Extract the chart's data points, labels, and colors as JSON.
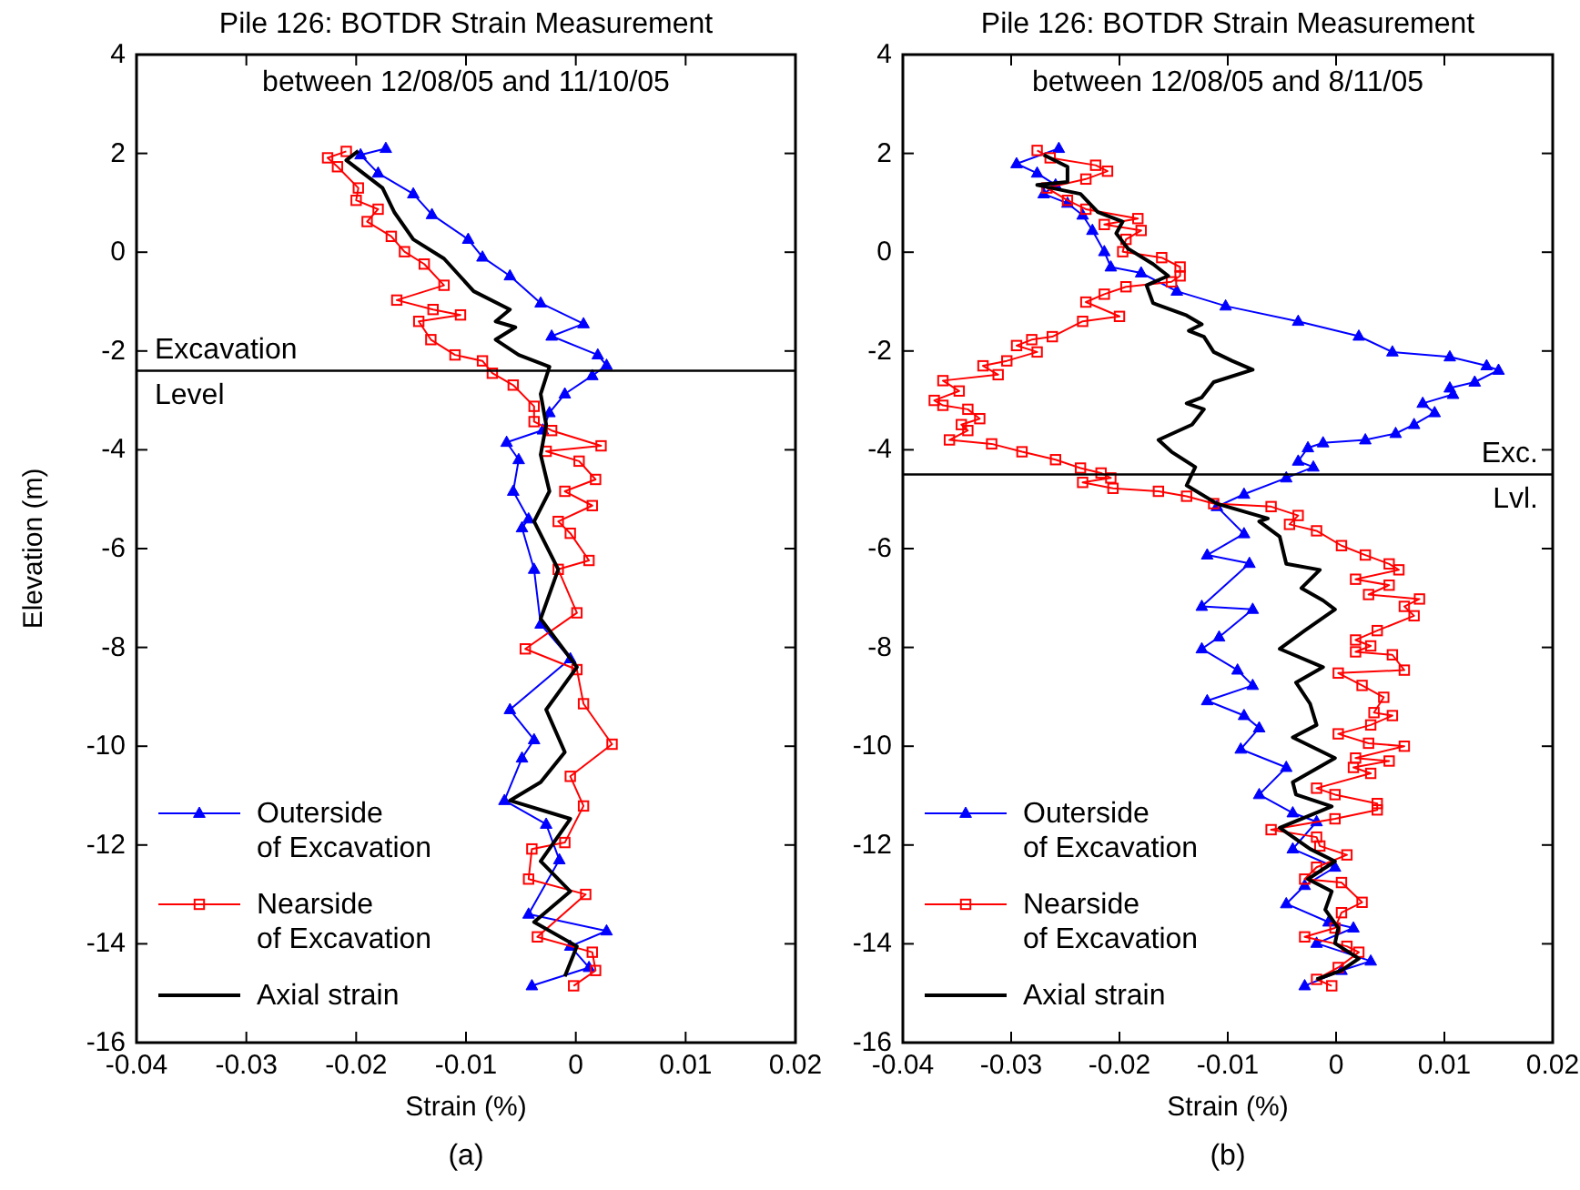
{
  "chart_data": [
    {
      "type": "line",
      "title": "Pile 126: BOTDR Strain Measurement",
      "subtitle": "between 12/08/05 and 11/10/05",
      "xlabel": "Strain (%)",
      "ylabel": "Elevation (m)",
      "annotations": [
        "(a)"
      ],
      "xlim": [
        -0.04,
        0.02
      ],
      "xticks": [
        -0.04,
        -0.03,
        -0.02,
        -0.01,
        0,
        0.01,
        0.02
      ],
      "ylim": [
        -16,
        4
      ],
      "yticks": [
        -16,
        -14,
        -12,
        -10,
        -8,
        -6,
        -4,
        -2,
        0,
        2,
        4
      ],
      "legend": "bottom left",
      "ref_lines": [
        {
          "axis": "y",
          "value": -2.4,
          "label": "Excavation Level",
          "color": "#000000"
        }
      ],
      "series": [
        {
          "name": "Outerside of Excavation",
          "color": "#0000ff",
          "marker": "triangle",
          "x": [
            -0.0173,
            -0.0196,
            -0.018,
            -0.0148,
            -0.0131,
            -0.0098,
            -0.0085,
            -0.006,
            -0.0032,
            0.0007,
            -0.0022,
            0.002,
            0.0028,
            0.0015,
            -0.001,
            -0.0024,
            -0.003,
            -0.0063,
            -0.0052,
            -0.0057,
            -0.0043,
            -0.0049,
            -0.0038,
            -0.0032,
            -0.0005,
            -0.006,
            -0.0038,
            -0.0049,
            -0.0065,
            -0.0027,
            -0.0015,
            -0.0043,
            0.0028,
            -0.0005,
            0.0012,
            -0.004
          ],
          "values": [
            2.1,
            1.97,
            1.6,
            1.18,
            0.76,
            0.26,
            -0.1,
            -0.48,
            -1.03,
            -1.45,
            -1.7,
            -2.08,
            -2.29,
            -2.5,
            -2.87,
            -3.25,
            -3.6,
            -3.85,
            -4.2,
            -4.84,
            -5.4,
            -5.58,
            -6.42,
            -7.53,
            -8.23,
            -9.26,
            -9.87,
            -10.24,
            -11.1,
            -11.58,
            -12.3,
            -13.4,
            -13.74,
            -14.05,
            -14.48,
            -14.85
          ]
        },
        {
          "name": "Nearside of Excavation",
          "color": "#ff0000",
          "marker": "square",
          "x": [
            -0.0209,
            -0.0226,
            -0.0217,
            -0.0198,
            -0.02,
            -0.018,
            -0.019,
            -0.0168,
            -0.0156,
            -0.0138,
            -0.012,
            -0.0163,
            -0.013,
            -0.0105,
            -0.0143,
            -0.0132,
            -0.011,
            -0.0085,
            -0.0076,
            -0.0057,
            -0.0038,
            -0.0038,
            -0.0022,
            0.0023,
            -0.0027,
            0.0003,
            0.0018,
            -0.001,
            0.0015,
            -0.0016,
            -0.0005,
            0.0012,
            -0.0016,
            0.0001,
            -0.0046,
            0.0001,
            0.0007,
            0.0033,
            -0.0005,
            0.0007,
            -0.001,
            -0.004,
            -0.0043,
            0.0009,
            -0.0035,
            0.0015,
            0.0018,
            -0.0002
          ],
          "values": [
            2.04,
            1.91,
            1.73,
            1.3,
            1.05,
            0.87,
            0.62,
            0.32,
            0.01,
            -0.24,
            -0.67,
            -0.97,
            -1.16,
            -1.27,
            -1.4,
            -1.77,
            -2.08,
            -2.2,
            -2.45,
            -2.69,
            -3.12,
            -3.43,
            -3.61,
            -3.92,
            -4.03,
            -4.23,
            -4.6,
            -4.84,
            -5.13,
            -5.45,
            -5.69,
            -6.24,
            -6.42,
            -7.3,
            -8.03,
            -8.45,
            -9.14,
            -9.96,
            -10.61,
            -11.21,
            -11.95,
            -12.08,
            -12.69,
            -13.0,
            -13.86,
            -14.17,
            -14.54,
            -14.85
          ]
        },
        {
          "name": "Axial strain",
          "color": "#000000",
          "marker": "none",
          "x": [
            -0.0198,
            -0.0209,
            -0.0176,
            -0.0165,
            -0.0148,
            -0.012,
            -0.0093,
            -0.006,
            -0.0073,
            -0.0055,
            -0.0073,
            -0.0052,
            -0.0024,
            -0.0032,
            -0.0027,
            -0.0032,
            -0.0024,
            -0.0038,
            -0.0016,
            -0.0032,
            0.0001,
            -0.0027,
            -0.001,
            -0.0032,
            -0.006,
            -0.0005,
            -0.0032,
            -0.0005,
            -0.0038,
            0.0001,
            -0.001
          ],
          "values": [
            2.05,
            1.86,
            1.3,
            0.8,
            0.26,
            -0.13,
            -0.79,
            -1.16,
            -1.4,
            -1.52,
            -1.77,
            -2.08,
            -2.32,
            -2.87,
            -3.49,
            -4.1,
            -4.84,
            -5.45,
            -6.42,
            -7.42,
            -8.4,
            -9.26,
            -10.12,
            -10.73,
            -11.1,
            -11.47,
            -12.33,
            -12.94,
            -13.56,
            -14.05,
            -14.66
          ]
        }
      ]
    },
    {
      "type": "line",
      "title": "Pile 126: BOTDR Strain Measurement",
      "subtitle": "between 12/08/05 and 8/11/05",
      "xlabel": "Strain (%)",
      "annotations": [
        "(b)"
      ],
      "xlim": [
        -0.04,
        0.02
      ],
      "xticks": [
        -0.04,
        -0.03,
        -0.02,
        -0.01,
        0,
        0.01,
        0.02
      ],
      "ylim": [
        -16,
        4
      ],
      "yticks": [
        -16,
        -14,
        -12,
        -10,
        -8,
        -6,
        -4,
        -2,
        0,
        2,
        4
      ],
      "legend": "bottom left",
      "ref_lines": [
        {
          "axis": "y",
          "value": -4.5,
          "label": "Exc. Lvl.",
          "color": "#000000"
        }
      ],
      "series": [
        {
          "name": "Outerside of Excavation",
          "color": "#0000ff",
          "marker": "triangle",
          "x": [
            -0.0256,
            -0.0295,
            -0.0276,
            -0.0259,
            -0.027,
            -0.0248,
            -0.0234,
            -0.0225,
            -0.0214,
            -0.0208,
            -0.018,
            -0.0147,
            -0.0102,
            -0.0035,
            0.0021,
            0.0052,
            0.0105,
            0.0139,
            0.015,
            0.0128,
            0.0105,
            0.0108,
            0.008,
            0.0091,
            0.0072,
            0.0055,
            0.0027,
            -0.0012,
            -0.0026,
            -0.0035,
            -0.0021,
            -0.0046,
            -0.0085,
            -0.011,
            -0.0085,
            -0.0119,
            -0.008,
            -0.0124,
            -0.0077,
            -0.0108,
            -0.0124,
            -0.0091,
            -0.0077,
            -0.0119,
            -0.0085,
            -0.0071,
            -0.0088,
            -0.0046,
            -0.0071,
            -0.004,
            -0.0018,
            -0.004,
            -0.0001,
            -0.0029,
            -0.0046,
            -0.0007,
            0.0016,
            -0.0018,
            0.0032,
            0.0005,
            -0.0029
          ],
          "values": [
            2.1,
            1.79,
            1.6,
            1.36,
            1.18,
            0.99,
            0.75,
            0.44,
            0.01,
            -0.3,
            -0.42,
            -0.79,
            -1.09,
            -1.4,
            -1.7,
            -2.02,
            -2.12,
            -2.3,
            -2.39,
            -2.63,
            -2.75,
            -2.88,
            -3.06,
            -3.25,
            -3.49,
            -3.67,
            -3.8,
            -3.86,
            -3.96,
            -4.23,
            -4.35,
            -4.57,
            -4.9,
            -5.15,
            -5.7,
            -6.13,
            -6.3,
            -7.17,
            -7.23,
            -7.79,
            -8.03,
            -8.46,
            -8.77,
            -9.08,
            -9.38,
            -9.63,
            -10.06,
            -10.43,
            -10.98,
            -11.35,
            -11.53,
            -12.08,
            -12.45,
            -12.82,
            -13.19,
            -13.56,
            -13.68,
            -13.99,
            -14.35,
            -14.54,
            -14.85
          ]
        },
        {
          "name": "Nearside of Excavation",
          "color": "#ff0000",
          "marker": "square",
          "x": [
            -0.0276,
            -0.0264,
            -0.0222,
            -0.0211,
            -0.0231,
            -0.0267,
            -0.0248,
            -0.0231,
            -0.0183,
            -0.0214,
            -0.018,
            -0.0194,
            -0.0197,
            -0.0161,
            -0.0144,
            -0.0144,
            -0.0152,
            -0.0194,
            -0.0214,
            -0.0231,
            -0.02,
            -0.0234,
            -0.0262,
            -0.0281,
            -0.0295,
            -0.0276,
            -0.0304,
            -0.0326,
            -0.0312,
            -0.0363,
            -0.0348,
            -0.0371,
            -0.0363,
            -0.034,
            -0.0329,
            -0.0346,
            -0.034,
            -0.0357,
            -0.0318,
            -0.029,
            -0.0259,
            -0.0236,
            -0.0217,
            -0.0208,
            -0.0234,
            -0.0206,
            -0.0164,
            -0.0138,
            -0.0113,
            -0.006,
            -0.0035,
            -0.0043,
            -0.0018,
            0.0005,
            0.0027,
            0.0049,
            0.0058,
            0.0018,
            0.0049,
            0.003,
            0.0077,
            0.0063,
            0.0072,
            0.0038,
            0.0018,
            0.0032,
            0.0018,
            0.0052,
            0.0063,
            0.0002,
            0.0024,
            0.0044,
            0.0035,
            0.0052,
            0.0032,
            0.0002,
            0.003,
            0.0063,
            0.0018,
            0.0049,
            0.0016,
            0.0032,
            -0.0018,
            -0.0001,
            0.0038,
            0.0038,
            -0.0001,
            -0.006,
            -0.0018,
            -0.0015,
            0.001,
            -0.0018,
            -0.0029,
            0.0005,
            0.0024,
            0.0005,
            -0.0001,
            -0.0029,
            0.001,
            0.0021,
            0.0002,
            -0.0018,
            -0.0004
          ],
          "values": [
            2.06,
            1.91,
            1.76,
            1.64,
            1.48,
            1.3,
            1.05,
            0.87,
            0.68,
            0.56,
            0.44,
            0.26,
            0.01,
            -0.11,
            -0.3,
            -0.48,
            -0.6,
            -0.7,
            -0.85,
            -1.01,
            -1.3,
            -1.4,
            -1.71,
            -1.77,
            -1.89,
            -2.02,
            -2.2,
            -2.3,
            -2.48,
            -2.6,
            -2.81,
            -3.0,
            -3.1,
            -3.18,
            -3.37,
            -3.49,
            -3.61,
            -3.8,
            -3.88,
            -4.04,
            -4.2,
            -4.37,
            -4.47,
            -4.57,
            -4.66,
            -4.78,
            -4.84,
            -4.94,
            -5.09,
            -5.15,
            -5.33,
            -5.51,
            -5.64,
            -5.94,
            -6.13,
            -6.31,
            -6.43,
            -6.62,
            -6.74,
            -6.93,
            -7.02,
            -7.17,
            -7.36,
            -7.66,
            -7.85,
            -7.97,
            -8.09,
            -8.15,
            -8.46,
            -8.52,
            -8.77,
            -9.01,
            -9.32,
            -9.38,
            -9.57,
            -9.75,
            -9.94,
            -10.0,
            -10.24,
            -10.3,
            -10.43,
            -10.55,
            -10.85,
            -10.98,
            -11.16,
            -11.29,
            -11.47,
            -11.69,
            -11.84,
            -12.02,
            -12.2,
            -12.45,
            -12.69,
            -12.76,
            -13.16,
            -13.37,
            -13.68,
            -13.86,
            -14.05,
            -14.17,
            -14.48,
            -14.72,
            -14.85
          ]
        },
        {
          "name": "Axial strain",
          "color": "#000000",
          "marker": "none",
          "x": [
            -0.027,
            -0.0248,
            -0.0248,
            -0.0276,
            -0.0236,
            -0.022,
            -0.0197,
            -0.0203,
            -0.0192,
            -0.0169,
            -0.0155,
            -0.0175,
            -0.0169,
            -0.0138,
            -0.0124,
            -0.0136,
            -0.0122,
            -0.0113,
            -0.0096,
            -0.0077,
            -0.0113,
            -0.0124,
            -0.0138,
            -0.0122,
            -0.0133,
            -0.0164,
            -0.0152,
            -0.013,
            -0.0138,
            -0.011,
            -0.0063,
            -0.0071,
            -0.0052,
            -0.0046,
            -0.0015,
            -0.0032,
            -0.0012,
            -0.0001,
            -0.0029,
            -0.0052,
            -0.0012,
            -0.0037,
            -0.0024,
            -0.0018,
            -0.004,
            -0.0001,
            -0.004,
            -0.0037,
            -0.0004,
            -0.0052,
            -0.0024,
            -0.0001,
            -0.0026,
            -0.0004,
            -0.001,
            0.0002,
            -0.0001,
            0.0021,
            0.0005,
            -0.0018
          ],
          "values": [
            1.97,
            1.73,
            1.42,
            1.36,
            1.18,
            0.81,
            0.62,
            0.38,
            0.07,
            -0.24,
            -0.48,
            -0.67,
            -1.03,
            -1.28,
            -1.46,
            -1.59,
            -1.71,
            -2.02,
            -2.2,
            -2.38,
            -2.63,
            -2.94,
            -3.06,
            -3.18,
            -3.49,
            -3.8,
            -4.04,
            -4.35,
            -4.72,
            -5.09,
            -5.39,
            -5.45,
            -5.76,
            -6.31,
            -6.43,
            -6.8,
            -7.05,
            -7.23,
            -7.66,
            -8.03,
            -8.4,
            -8.71,
            -9.14,
            -9.57,
            -9.82,
            -10.24,
            -10.73,
            -10.98,
            -11.22,
            -11.65,
            -12.08,
            -12.33,
            -12.69,
            -12.94,
            -13.31,
            -13.68,
            -13.99,
            -14.3,
            -14.54,
            -14.72
          ]
        }
      ]
    }
  ]
}
